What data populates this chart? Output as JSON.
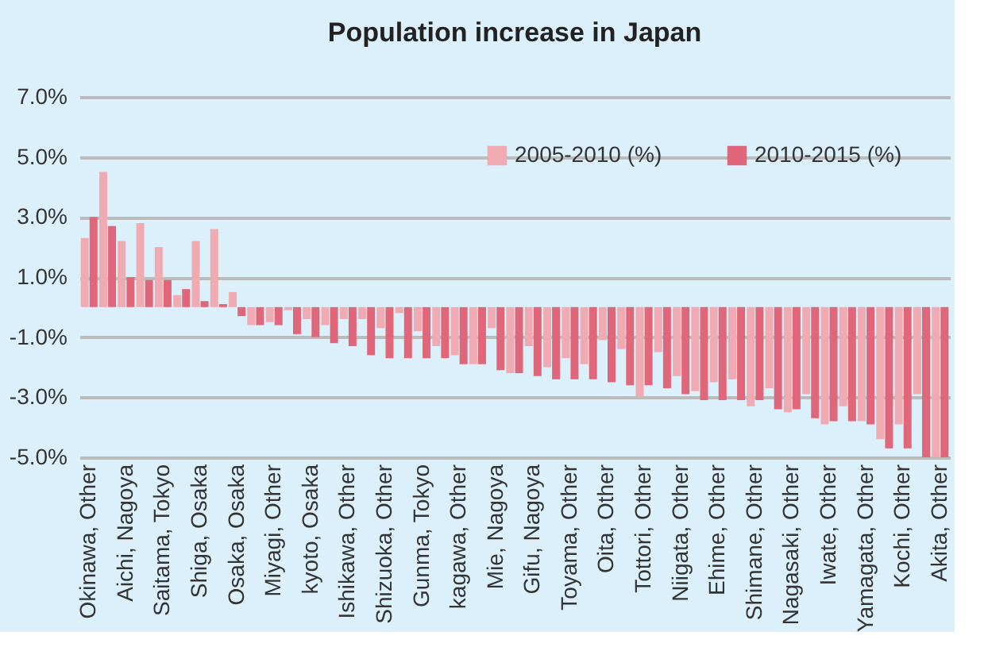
{
  "chart_data": {
    "type": "bar",
    "title": "Population increase in Japan",
    "categories": [
      "Okinawa, Other",
      null,
      "Aichi, Nagoya",
      null,
      "Saitama, Tokyo",
      null,
      "Shiga, Osaka",
      null,
      "Osaka, Osaka",
      null,
      "Miyagi, Other",
      null,
      "kyoto, Osaka",
      null,
      "Ishikawa, Other",
      null,
      "Shizuoka, Other",
      null,
      "Gunma, Tokyo",
      null,
      "kagawa, Other",
      null,
      "Mie, Nagoya",
      null,
      "Gifu, Nagoya",
      null,
      "Toyama, Other",
      null,
      "Oita, Other",
      null,
      "Tottori, Other",
      null,
      "Niigata, Other",
      null,
      "Ehime, Other",
      null,
      "Shimane, Other",
      null,
      "Nagasaki, Other",
      null,
      "Iwate, Other",
      null,
      "Yamagata, Other",
      null,
      "Kochi, Other",
      null,
      "Akita, Other"
    ],
    "series": [
      {
        "name": "2005-2010 (%)",
        "color": "#f0aab2",
        "values": [
          2.3,
          4.5,
          2.2,
          2.8,
          2.0,
          0.4,
          2.2,
          2.6,
          0.5,
          -0.6,
          -0.5,
          -0.1,
          -0.4,
          -0.6,
          -0.4,
          -0.4,
          -0.7,
          -0.2,
          -0.8,
          -1.3,
          -1.6,
          -1.9,
          -0.7,
          -2.2,
          -1.3,
          -2.0,
          -1.7,
          -1.9,
          -1.1,
          -1.4,
          -3.0,
          -1.5,
          -2.3,
          -2.8,
          -2.5,
          -2.4,
          -3.3,
          -2.7,
          -3.5,
          -2.9,
          -3.9,
          -3.3,
          -3.8,
          -4.4,
          -3.9,
          -2.9,
          -5.0
        ]
      },
      {
        "name": "2010-2015 (%)",
        "color": "#e0677a",
        "values": [
          3.0,
          2.7,
          1.0,
          0.9,
          0.9,
          0.6,
          0.2,
          0.1,
          -0.3,
          -0.6,
          -0.6,
          -0.9,
          -1.0,
          -1.2,
          -1.3,
          -1.6,
          -1.7,
          -1.7,
          -1.7,
          -1.7,
          -1.9,
          -1.9,
          -2.1,
          -2.2,
          -2.3,
          -2.4,
          -2.4,
          -2.4,
          -2.5,
          -2.6,
          -2.6,
          -2.7,
          -2.9,
          -3.1,
          -3.1,
          -3.1,
          -3.1,
          -3.4,
          -3.4,
          -3.7,
          -3.8,
          -3.8,
          -3.9,
          -4.7,
          -4.7,
          -5.0,
          -5.0
        ]
      }
    ],
    "ylim": [
      -5,
      7
    ],
    "yticks": [
      {
        "value": -5,
        "label": "-5.0%"
      },
      {
        "value": -3,
        "label": "-3.0%"
      },
      {
        "value": -1,
        "label": "-1.0%"
      },
      {
        "value": 1,
        "label": "1.0%"
      },
      {
        "value": 3,
        "label": "3.0%"
      },
      {
        "value": 5,
        "label": "5.0%"
      },
      {
        "value": 7,
        "label": "7.0%"
      }
    ],
    "grid": "y",
    "legend": "top right"
  }
}
